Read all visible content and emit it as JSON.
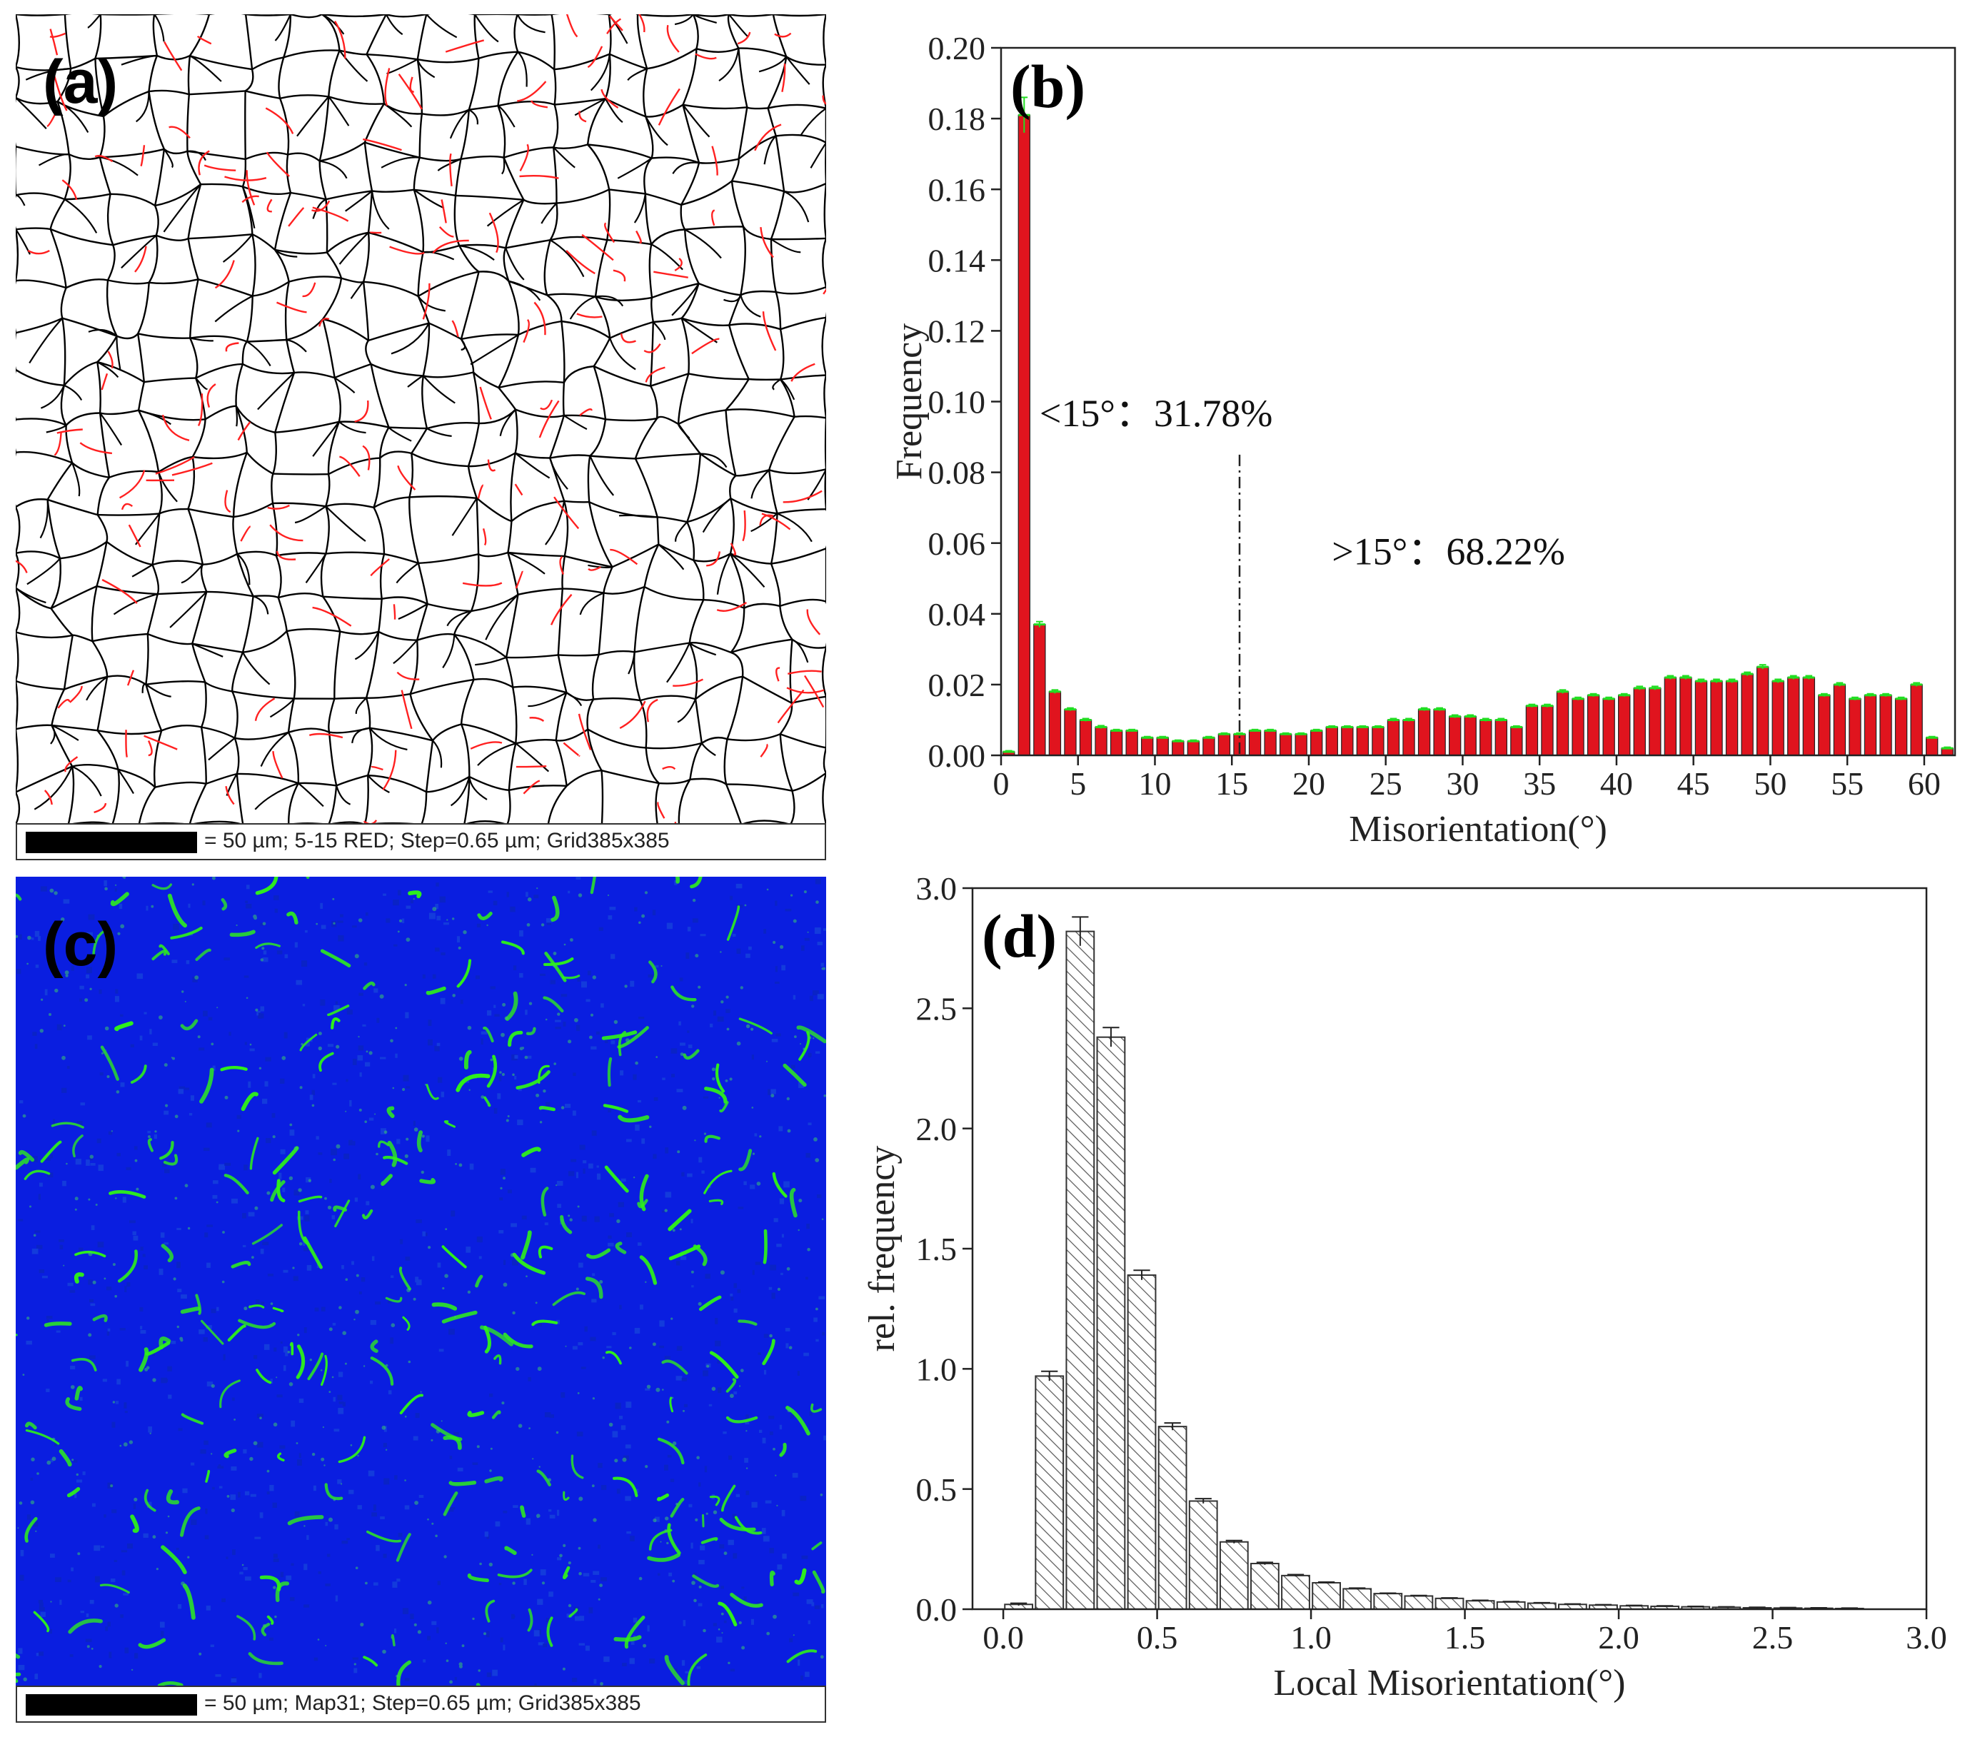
{
  "panel_a": {
    "label": "(a)",
    "scalebar_text": "= 50 µm; 5-15 RED; Step=0.65 µm; Grid385x385",
    "colors": {
      "boundary_high": "#000000",
      "boundary_low": "#ff2020"
    }
  },
  "panel_c": {
    "label": "(c)",
    "scalebar_text": "= 50 µm; Map31; Step=0.65 µm; Grid385x385",
    "colors": {
      "background": "#0a1ee0",
      "features": "#2ef01a"
    }
  },
  "chart_data": [
    {
      "id": "b",
      "label": "(b)",
      "type": "bar",
      "xlabel": "Misorientation(°)",
      "ylabel": "Frequency",
      "xlim": [
        0,
        62
      ],
      "ylim": [
        0,
        0.2
      ],
      "xticks": [
        "0",
        "5",
        "10",
        "15",
        "20",
        "25",
        "30",
        "35",
        "40",
        "45",
        "50",
        "55",
        "60"
      ],
      "yticks": [
        "0.00",
        "0.02",
        "0.04",
        "0.06",
        "0.08",
        "0.10",
        "0.12",
        "0.14",
        "0.16",
        "0.18",
        "0.20"
      ],
      "bar_width": 0.75,
      "x": [
        0.5,
        1.5,
        2.5,
        3.5,
        4.5,
        5.5,
        6.5,
        7.5,
        8.5,
        9.5,
        10.5,
        11.5,
        12.5,
        13.5,
        14.5,
        15.5,
        16.5,
        17.5,
        18.5,
        19.5,
        20.5,
        21.5,
        22.5,
        23.5,
        24.5,
        25.5,
        26.5,
        27.5,
        28.5,
        29.5,
        30.5,
        31.5,
        32.5,
        33.5,
        34.5,
        35.5,
        36.5,
        37.5,
        38.5,
        39.5,
        40.5,
        41.5,
        42.5,
        43.5,
        44.5,
        45.5,
        46.5,
        47.5,
        48.5,
        49.5,
        50.5,
        51.5,
        52.5,
        53.5,
        54.5,
        55.5,
        56.5,
        57.5,
        58.5,
        59.5,
        60.5,
        61.5
      ],
      "values": [
        0.001,
        0.181,
        0.037,
        0.018,
        0.013,
        0.01,
        0.008,
        0.007,
        0.007,
        0.005,
        0.005,
        0.004,
        0.004,
        0.005,
        0.006,
        0.006,
        0.007,
        0.007,
        0.006,
        0.006,
        0.007,
        0.008,
        0.008,
        0.008,
        0.008,
        0.01,
        0.01,
        0.013,
        0.013,
        0.011,
        0.011,
        0.01,
        0.01,
        0.008,
        0.014,
        0.014,
        0.018,
        0.016,
        0.017,
        0.016,
        0.017,
        0.019,
        0.019,
        0.022,
        0.022,
        0.021,
        0.021,
        0.021,
        0.023,
        0.025,
        0.021,
        0.022,
        0.022,
        0.017,
        0.02,
        0.016,
        0.017,
        0.017,
        0.016,
        0.02,
        0.005,
        0.002
      ],
      "errors": [
        0.0003,
        0.005,
        0.0008,
        0.0005,
        0.0004,
        0.0004,
        0.0004,
        0.0003,
        0.0003,
        0.0003,
        0.0003,
        0.0003,
        0.0003,
        0.0003,
        0.0003,
        0.0003,
        0.0003,
        0.0003,
        0.0003,
        0.0003,
        0.0003,
        0.0003,
        0.0003,
        0.0003,
        0.0003,
        0.0004,
        0.0004,
        0.0004,
        0.0004,
        0.0004,
        0.0004,
        0.0004,
        0.0004,
        0.0003,
        0.0004,
        0.0004,
        0.0005,
        0.0004,
        0.0004,
        0.0004,
        0.0004,
        0.0005,
        0.0005,
        0.0005,
        0.0005,
        0.0005,
        0.0005,
        0.0005,
        0.0005,
        0.0006,
        0.0005,
        0.0005,
        0.0005,
        0.0004,
        0.0005,
        0.0004,
        0.0004,
        0.0004,
        0.0004,
        0.0005,
        0.0003,
        0.0003
      ],
      "bar_color": "#e0141e",
      "error_color": "#22dd22",
      "divider_x": 15.5,
      "annotations": [
        {
          "text": "<15°：31.78%",
          "x": 2.5,
          "y": 0.093
        },
        {
          "text": ">15°：68.22%",
          "x": 21.5,
          "y": 0.054
        }
      ]
    },
    {
      "id": "d",
      "label": "(d)",
      "type": "bar",
      "xlabel": "Local Misorientation(°)",
      "ylabel": "rel. frequency",
      "xlim": [
        -0.1,
        3.0
      ],
      "ylim": [
        0,
        3.0
      ],
      "xticks": [
        "0.0",
        "0.5",
        "1.0",
        "1.5",
        "2.0",
        "2.5",
        "3.0"
      ],
      "yticks": [
        "0.0",
        "0.5",
        "1.0",
        "1.5",
        "2.0",
        "2.5",
        "3.0"
      ],
      "bar_width": 0.09,
      "x": [
        0.05,
        0.15,
        0.25,
        0.35,
        0.45,
        0.55,
        0.65,
        0.75,
        0.85,
        0.95,
        1.05,
        1.15,
        1.25,
        1.35,
        1.45,
        1.55,
        1.65,
        1.75,
        1.85,
        1.95,
        2.05,
        2.15,
        2.25,
        2.35,
        2.45,
        2.55,
        2.65,
        2.75
      ],
      "values": [
        0.02,
        0.97,
        2.82,
        2.38,
        1.39,
        0.76,
        0.45,
        0.28,
        0.19,
        0.14,
        0.11,
        0.085,
        0.065,
        0.055,
        0.045,
        0.035,
        0.03,
        0.025,
        0.02,
        0.017,
        0.014,
        0.012,
        0.01,
        0.008,
        0.006,
        0.005,
        0.004,
        0.003
      ],
      "errors": [
        0.005,
        0.02,
        0.06,
        0.04,
        0.02,
        0.015,
        0.01,
        0.006,
        0.005,
        0.004,
        0.003,
        0.003,
        0.002,
        0.002,
        0.002,
        0.002,
        0.002,
        0.002,
        0.002,
        0.002,
        0.002,
        0.002,
        0.002,
        0.002,
        0.002,
        0.002,
        0.002,
        0.002
      ],
      "bar_color": "#ffffff",
      "hatch_color": "#555555"
    }
  ]
}
